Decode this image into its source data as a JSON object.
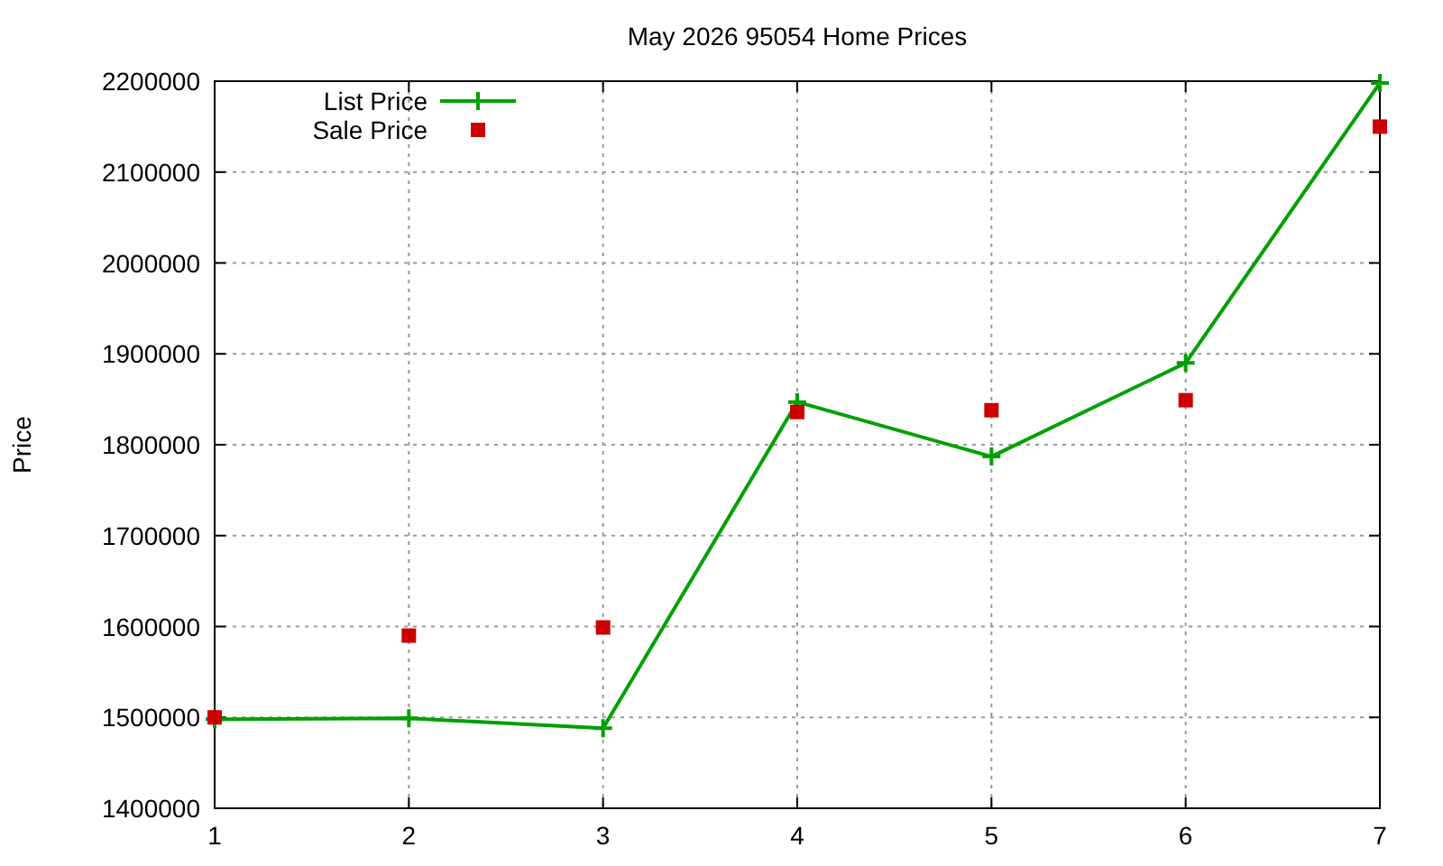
{
  "chart_data": {
    "type": "line",
    "title": "May 2026 95054 Home Prices",
    "ylabel": "Price",
    "x": [
      1,
      2,
      3,
      4,
      5,
      6,
      7
    ],
    "series": [
      {
        "name": "List Price",
        "color": "#00a000",
        "marker": "cross",
        "values": [
          1498000,
          1499000,
          1488000,
          1847000,
          1787000,
          1890000,
          2198000
        ]
      },
      {
        "name": "Sale Price",
        "color": "#cc0000",
        "type": "scatter",
        "marker": "square",
        "values": [
          1500000,
          1590000,
          1599000,
          1836000,
          1838000,
          1849000,
          2150000
        ]
      }
    ],
    "xlim": [
      1,
      7
    ],
    "xticks": [
      1,
      2,
      3,
      4,
      5,
      6,
      7
    ],
    "ylim": [
      1400000,
      2200000
    ],
    "yticks": [
      1400000,
      1500000,
      1600000,
      1700000,
      1800000,
      1900000,
      2000000,
      2100000,
      2200000
    ],
    "grid": true,
    "legend": "top left"
  }
}
